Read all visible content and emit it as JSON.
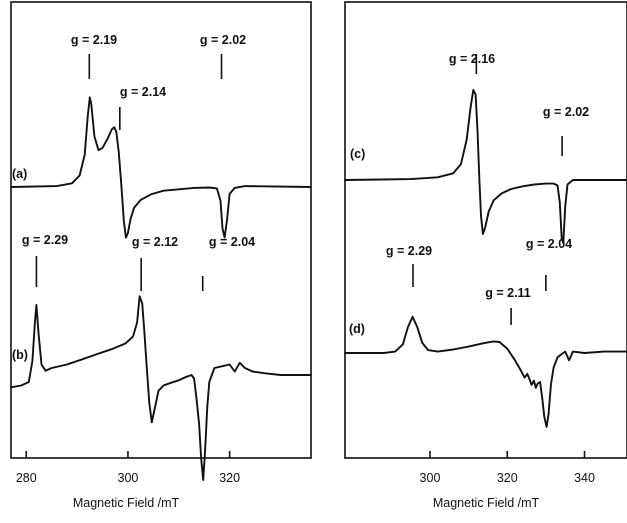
{
  "chart_data": [
    {
      "type": "line",
      "panel": "left",
      "xlabel": "Magnetic Field /mT",
      "ylabel": "",
      "xlim": [
        277,
        336
      ],
      "x_ticks": [
        280,
        300,
        320
      ],
      "x_tick_labels": [
        "280",
        "300",
        "320"
      ],
      "grid": false,
      "series": [
        {
          "name": "(a)",
          "x": [
            277,
            286,
            289,
            290.5,
            291.5,
            292.1,
            292.5,
            292.8,
            293.4,
            294.2,
            295,
            296,
            296.8,
            297.3,
            297.7,
            298.2,
            298.7,
            299.2,
            299.6,
            300,
            300.5,
            301.2,
            302.5,
            304.5,
            307,
            310,
            313,
            316,
            317.5,
            318.2,
            318.6,
            319,
            319.5,
            320,
            321,
            323,
            336
          ],
          "y": [
            0,
            0.02,
            0.08,
            0.25,
            0.7,
            1.55,
            1.95,
            1.8,
            1.1,
            0.8,
            0.85,
            1.05,
            1.25,
            1.3,
            1.2,
            0.75,
            0.05,
            -0.75,
            -1.1,
            -1.0,
            -0.7,
            -0.45,
            -0.28,
            -0.16,
            -0.08,
            -0.05,
            -0.02,
            -0.01,
            -0.03,
            -0.3,
            -0.9,
            -1.1,
            -0.7,
            -0.15,
            -0.02,
            0.02,
            0
          ]
        },
        {
          "name": "(b)",
          "x": [
            277,
            279,
            280.5,
            281.2,
            281.7,
            282,
            282.4,
            283,
            283.8,
            285,
            288,
            291,
            294,
            297,
            299.5,
            301,
            301.8,
            302.3,
            302.8,
            303.2,
            303.7,
            304.2,
            304.7,
            305.2,
            306,
            307,
            308.5,
            310,
            311.5,
            312.5,
            313,
            313.5,
            314,
            314.4,
            314.8,
            315.2,
            315.6,
            316,
            317,
            318.5,
            320,
            321,
            322,
            323,
            324.5,
            327,
            330,
            336
          ],
          "y": [
            -0.35,
            -0.3,
            -0.2,
            0.4,
            1.5,
            2.0,
            1.2,
            0.3,
            0.12,
            0.2,
            0.3,
            0.45,
            0.6,
            0.75,
            0.9,
            1.1,
            1.5,
            2.25,
            2.05,
            1.3,
            0.2,
            -0.8,
            -1.35,
            -1.0,
            -0.45,
            -0.3,
            -0.22,
            -0.15,
            -0.05,
            0.0,
            -0.1,
            -0.7,
            -1.4,
            -2.4,
            -3.0,
            -2.1,
            -0.9,
            -0.2,
            0.2,
            0.25,
            0.3,
            0.1,
            0.35,
            0.2,
            0.1,
            0.05,
            0.0,
            0.0
          ]
        }
      ],
      "annotations": [
        {
          "text": "g = 2.19",
          "x": 292.4
        },
        {
          "text": "g = 2.14",
          "x": 298.4
        },
        {
          "text": "g = 2.02",
          "x": 318.4
        },
        {
          "text": "g = 2.29",
          "x": 282
        },
        {
          "text": "g = 2.12",
          "x": 302.6
        },
        {
          "text": "g = 2.04",
          "x": 314.7
        }
      ],
      "trace_labels": [
        "(a)",
        "(b)"
      ]
    },
    {
      "type": "line",
      "panel": "right",
      "xlabel": "Magnetic Field /mT",
      "ylabel": "",
      "xlim": [
        278,
        351
      ],
      "x_ticks": [
        300,
        320,
        340
      ],
      "x_tick_labels": [
        "300",
        "320",
        "340"
      ],
      "grid": false,
      "series": [
        {
          "name": "(c)",
          "x": [
            278,
            295,
            302,
            306,
            308,
            309.5,
            310.5,
            311.2,
            311.8,
            312.3,
            312.8,
            313.2,
            313.7,
            314.3,
            315.2,
            316.5,
            318.5,
            321,
            324,
            327,
            330,
            332,
            333,
            333.6,
            334.1,
            334.5,
            335,
            335.6,
            337,
            340,
            351
          ],
          "y": [
            0,
            0.02,
            0.06,
            0.15,
            0.35,
            0.9,
            1.6,
            2.0,
            1.9,
            1.1,
            0.0,
            -0.8,
            -1.2,
            -1.05,
            -0.7,
            -0.45,
            -0.3,
            -0.2,
            -0.14,
            -0.1,
            -0.08,
            -0.08,
            -0.12,
            -0.5,
            -1.3,
            -1.4,
            -0.6,
            -0.1,
            0.0,
            0.0,
            0.0
          ]
        },
        {
          "name": "(d)",
          "x": [
            278,
            288,
            291,
            293,
            294.3,
            295.5,
            296.7,
            298,
            299.5,
            302,
            306,
            310,
            314,
            316.5,
            318,
            320,
            322,
            323.5,
            324.5,
            325.2,
            325.8,
            326.3,
            326.9,
            327.4,
            327.9,
            328.5,
            329.1,
            329.6,
            330.2,
            330.7,
            331.3,
            332,
            333,
            334,
            335,
            336,
            337,
            340,
            345,
            351
          ],
          "y": [
            0,
            0.0,
            0.05,
            0.3,
            0.9,
            1.25,
            0.9,
            0.35,
            0.1,
            0.05,
            0.12,
            0.22,
            0.34,
            0.4,
            0.38,
            0.15,
            -0.25,
            -0.6,
            -0.85,
            -0.72,
            -0.92,
            -1.1,
            -0.95,
            -1.2,
            -1.05,
            -1.0,
            -1.6,
            -2.2,
            -2.55,
            -2.1,
            -1.1,
            -0.5,
            -0.15,
            -0.05,
            0.05,
            -0.25,
            0.05,
            0.0,
            0.05,
            0.05
          ]
        }
      ],
      "annotations": [
        {
          "text": "g = 2.16",
          "x": 312
        },
        {
          "text": "g = 2.02",
          "x": 334.2
        },
        {
          "text": "g = 2.29",
          "x": 295.6
        },
        {
          "text": "g = 2.11",
          "x": 321
        },
        {
          "text": "g = 2.04",
          "x": 330
        }
      ],
      "trace_labels": [
        "(c)",
        "(d)"
      ]
    }
  ]
}
